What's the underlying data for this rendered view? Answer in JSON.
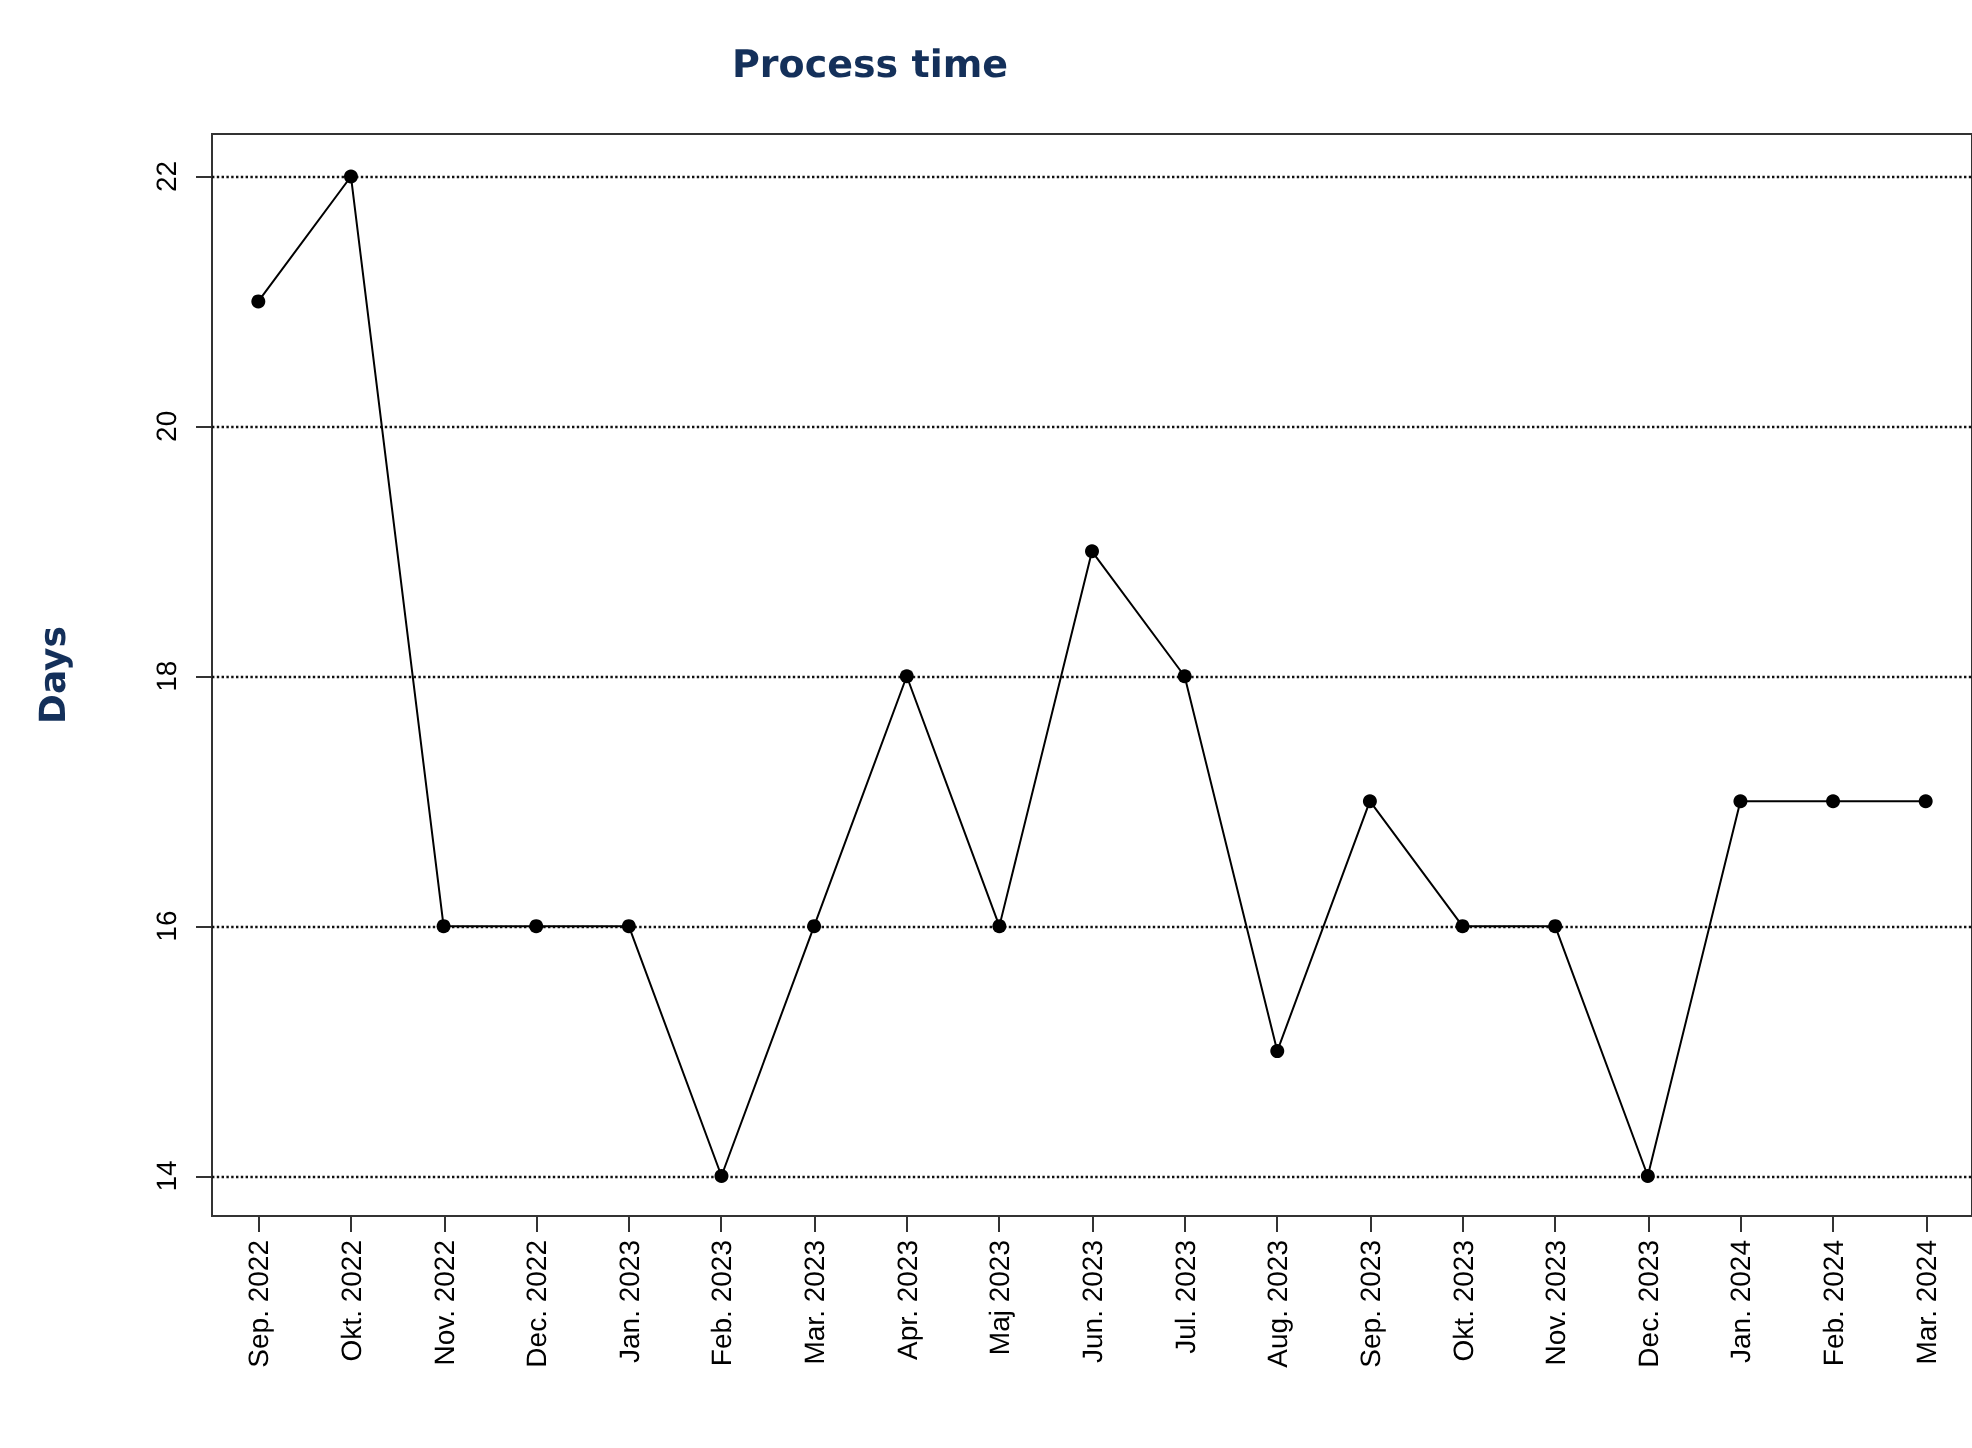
{
  "chart_data": {
    "type": "line",
    "title": "Process time",
    "ylabel": "Days",
    "categories": [
      "Sep. 2022",
      "Okt. 2022",
      "Nov. 2022",
      "Dec. 2022",
      "Jan. 2023",
      "Feb. 2023",
      "Mar. 2023",
      "Apr. 2023",
      "Maj 2023",
      "Jun. 2023",
      "Jul. 2023",
      "Aug. 2023",
      "Sep. 2023",
      "Okt. 2023",
      "Nov. 2023",
      "Dec. 2023",
      "Jan. 2024",
      "Feb. 2024",
      "Mar. 2024"
    ],
    "series": [
      {
        "color": "#000000",
        "values": [
          21,
          22,
          16,
          16,
          16,
          14,
          16,
          18,
          16,
          19,
          18,
          15,
          17,
          16,
          16,
          14,
          17,
          17,
          17
        ]
      }
    ],
    "ylim": [
      13.68,
      22.34
    ],
    "yticks": [
      14,
      16,
      18,
      20,
      22
    ],
    "grid": "y",
    "marker": "circle",
    "line_style": "solid"
  }
}
